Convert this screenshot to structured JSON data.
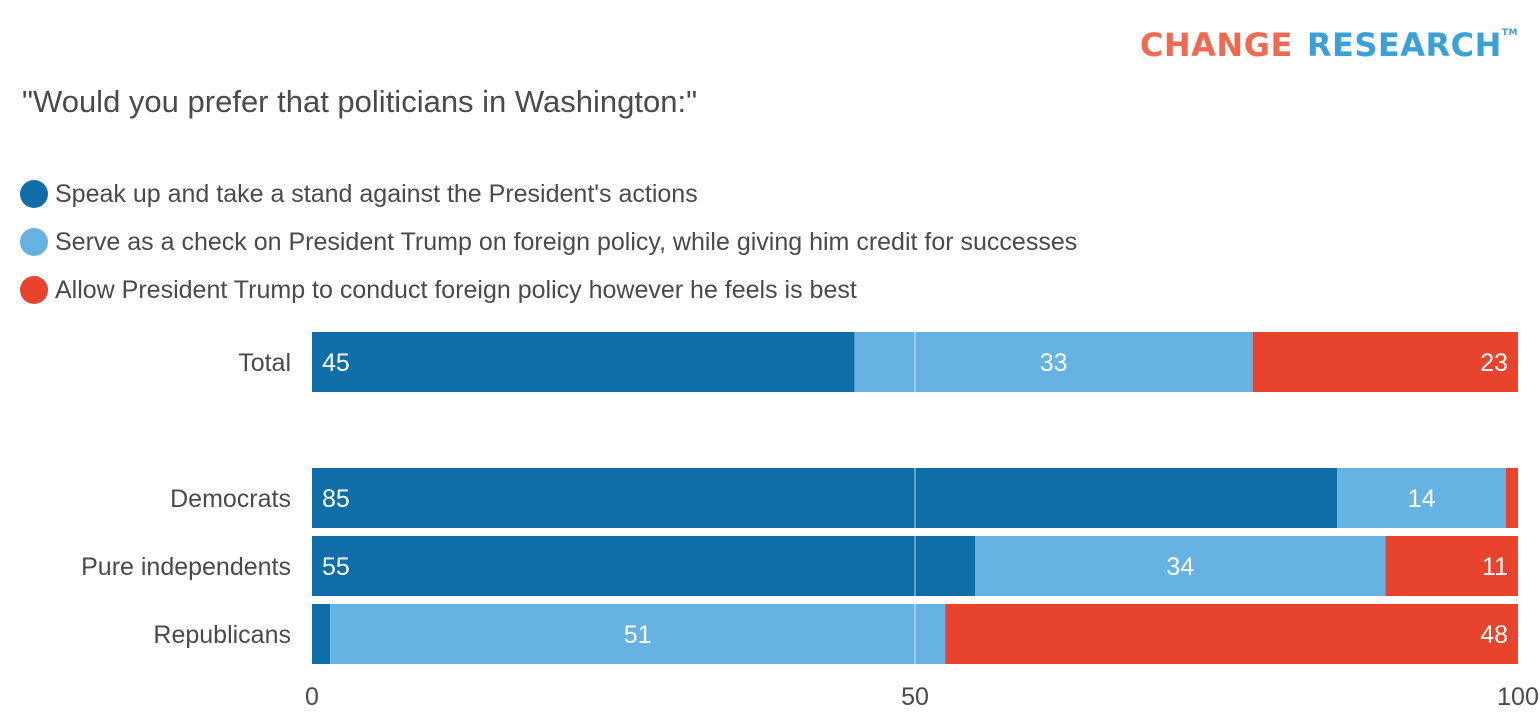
{
  "logo": {
    "part1": "CHANGE",
    "part2": "RESEARCH",
    "tm": "TM"
  },
  "chart_data": {
    "type": "bar",
    "orientation": "horizontal",
    "stacked": true,
    "title": "\"Would you prefer that politicians in Washington:\"",
    "xlabel": "",
    "ylabel": "",
    "xlim": [
      0,
      100
    ],
    "xticks": [
      0,
      50,
      100
    ],
    "grid": "vertical line at 50",
    "legend_position": "top-left",
    "categories": [
      "Total",
      "Democrats",
      "Pure independents",
      "Republicans"
    ],
    "series": [
      {
        "name": "Speak up and take a stand against the President's actions",
        "color": "#0f6ea8",
        "values": [
          45,
          85,
          55,
          1.5
        ],
        "labels": [
          "45",
          "85",
          "55",
          ""
        ]
      },
      {
        "name": "Serve as a check on President Trump on foreign policy, while giving him credit for successes",
        "color": "#66b3e3",
        "values": [
          33,
          14,
          34,
          51
        ],
        "labels": [
          "33",
          "14",
          "34",
          "51"
        ]
      },
      {
        "name": "Allow President Trump to conduct foreign policy however he feels is best",
        "color": "#e8432c",
        "values": [
          23,
          1,
          11,
          48
        ],
        "labels": [
          "23",
          "",
          "11",
          "48"
        ]
      }
    ]
  }
}
